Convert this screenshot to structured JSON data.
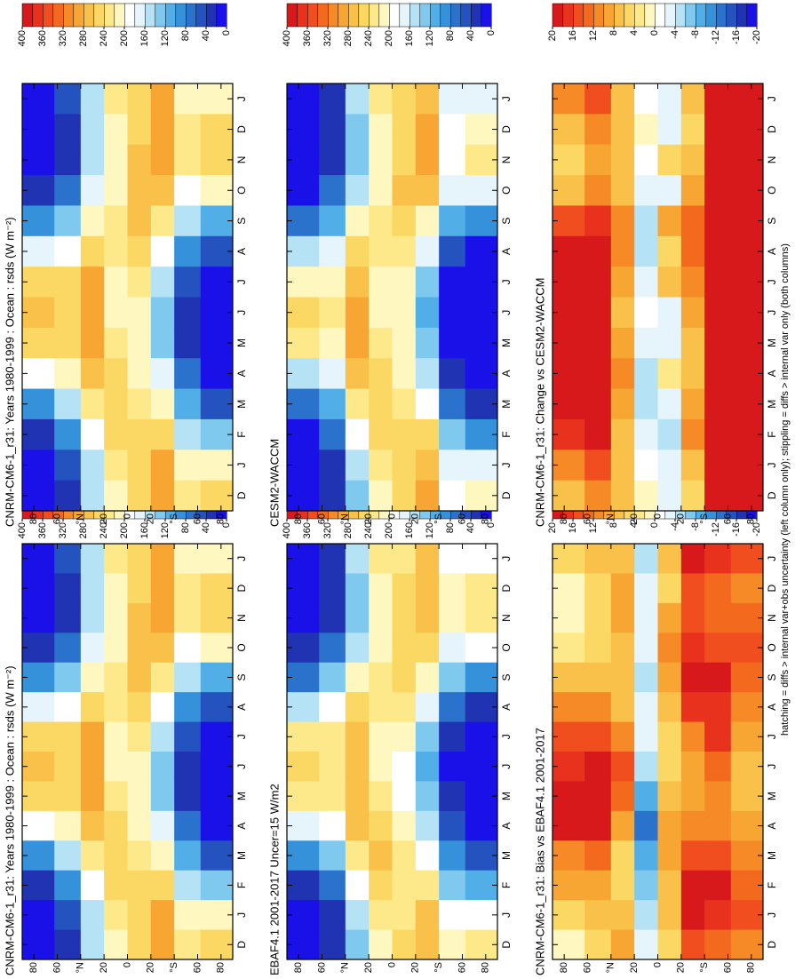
{
  "chart_data": [
    {
      "type": "heatmap",
      "title": "CNRM-CM6-1_r31: Years 1980-1999 : Ocean : rsds (W m⁻²)",
      "x": [
        "D",
        "J",
        "F",
        "M",
        "A",
        "M",
        "J",
        "J",
        "A",
        "S",
        "O",
        "N",
        "D",
        "J"
      ],
      "y": [
        75,
        50,
        30,
        10,
        -10,
        -30,
        -50,
        -75
      ],
      "z": [
        [
          0,
          5,
          30,
          90,
          180,
          250,
          270,
          240,
          160,
          80,
          25,
          3,
          0,
          5
        ],
        [
          30,
          40,
          80,
          140,
          200,
          240,
          250,
          240,
          190,
          130,
          70,
          35,
          30,
          40
        ],
        [
          140,
          150,
          190,
          230,
          270,
          290,
          290,
          280,
          250,
          210,
          160,
          140,
          140,
          150
        ],
        [
          210,
          220,
          240,
          250,
          240,
          220,
          210,
          210,
          220,
          220,
          210,
          200,
          210,
          220
        ],
        [
          250,
          240,
          240,
          230,
          210,
          200,
          200,
          220,
          240,
          260,
          260,
          260,
          250,
          240
        ],
        [
          290,
          280,
          250,
          200,
          160,
          130,
          120,
          140,
          180,
          230,
          270,
          290,
          290,
          280
        ],
        [
          220,
          200,
          150,
          100,
          60,
          30,
          25,
          40,
          80,
          140,
          190,
          220,
          220,
          200
        ],
        [
          240,
          200,
          120,
          50,
          10,
          0,
          0,
          5,
          40,
          110,
          200,
          250,
          240,
          200
        ]
      ],
      "ylim": [
        -90,
        90
      ],
      "yticks": [
        {
          "value": 80,
          "label": "80"
        },
        {
          "value": 60,
          "label": "60"
        },
        {
          "value": 40,
          "label": "°N"
        },
        {
          "value": 20,
          "label": "20"
        },
        0,
        {
          "value": -20,
          "label": "20"
        },
        {
          "value": -40,
          "label": "°S"
        },
        {
          "value": -60,
          "label": "60"
        },
        {
          "value": -80,
          "label": "80"
        }
      ],
      "zlim": [
        0,
        400
      ],
      "cbticks": [
        400,
        360,
        320,
        280,
        240,
        200,
        160,
        120,
        80,
        40,
        0
      ]
    },
    {
      "type": "heatmap",
      "title": "CNRM-CM6-1_r31: Years 1980-1999 : Ocean : rsds (W m⁻²)",
      "x": [
        "D",
        "J",
        "F",
        "M",
        "A",
        "M",
        "J",
        "J",
        "A",
        "S",
        "O",
        "N",
        "D",
        "J"
      ],
      "y": [
        75,
        50,
        30,
        10,
        -10,
        -30,
        -50,
        -75
      ],
      "z": [
        [
          0,
          5,
          30,
          90,
          180,
          250,
          270,
          240,
          160,
          80,
          25,
          3,
          0,
          5
        ],
        [
          30,
          40,
          80,
          140,
          200,
          240,
          250,
          240,
          190,
          130,
          70,
          35,
          30,
          40
        ],
        [
          140,
          150,
          190,
          230,
          270,
          290,
          290,
          280,
          250,
          210,
          160,
          140,
          140,
          150
        ],
        [
          210,
          220,
          240,
          250,
          240,
          220,
          210,
          210,
          220,
          220,
          210,
          200,
          210,
          220
        ],
        [
          250,
          240,
          240,
          230,
          210,
          200,
          200,
          220,
          240,
          260,
          260,
          260,
          250,
          240
        ],
        [
          290,
          280,
          250,
          200,
          160,
          130,
          120,
          140,
          180,
          230,
          270,
          290,
          290,
          280
        ],
        [
          220,
          200,
          150,
          100,
          60,
          30,
          25,
          40,
          80,
          140,
          190,
          220,
          220,
          200
        ],
        [
          240,
          200,
          120,
          50,
          10,
          0,
          0,
          5,
          40,
          110,
          200,
          250,
          240,
          200
        ]
      ],
      "ylim": [
        -90,
        90
      ],
      "yticks": [
        {
          "value": 80,
          "label": "80"
        },
        {
          "value": 60,
          "label": "60"
        },
        {
          "value": 40,
          "label": "°N"
        },
        {
          "value": 20,
          "label": "20"
        },
        0,
        {
          "value": -20,
          "label": "20"
        },
        {
          "value": -40,
          "label": "°S"
        },
        {
          "value": -60,
          "label": "60"
        },
        {
          "value": -80,
          "label": "80"
        }
      ],
      "zlim": [
        0,
        400
      ],
      "cbticks": [
        400,
        360,
        320,
        280,
        240,
        200,
        160,
        120,
        80,
        40,
        0
      ]
    },
    {
      "type": "heatmap",
      "title": "EBAF4.1 2001-2017 Uncer=15 W/m2",
      "x": [
        "D",
        "J",
        "F",
        "M",
        "A",
        "M",
        "J",
        "J",
        "A",
        "S",
        "O",
        "N",
        "D",
        "J"
      ],
      "y": [
        75,
        50,
        30,
        10,
        -10,
        -30,
        -50,
        -75
      ],
      "z": [
        [
          0,
          3,
          25,
          85,
          165,
          230,
          255,
          228,
          150,
          76,
          23,
          3,
          0,
          3
        ],
        [
          26,
          34,
          72,
          128,
          180,
          220,
          232,
          226,
          180,
          124,
          66,
          31,
          26,
          34
        ],
        [
          132,
          144,
          186,
          226,
          262,
          278,
          276,
          270,
          244,
          204,
          154,
          132,
          132,
          144
        ],
        [
          214,
          226,
          248,
          260,
          254,
          230,
          216,
          214,
          224,
          226,
          214,
          204,
          214,
          226
        ],
        [
          246,
          234,
          234,
          222,
          202,
          194,
          196,
          216,
          234,
          252,
          250,
          252,
          246,
          234
        ],
        [
          276,
          262,
          230,
          186,
          150,
          122,
          112,
          130,
          164,
          212,
          254,
          276,
          276,
          262
        ],
        [
          208,
          184,
          132,
          86,
          50,
          20,
          13,
          24,
          64,
          122,
          176,
          208,
          208,
          184
        ],
        [
          230,
          186,
          108,
          40,
          2,
          0,
          0,
          0,
          30,
          98,
          186,
          238,
          230,
          186
        ]
      ],
      "ylim": [
        -90,
        90
      ],
      "yticks": [
        {
          "value": 80,
          "label": "80"
        },
        {
          "value": 60,
          "label": "60"
        },
        {
          "value": 40,
          "label": "°N"
        },
        {
          "value": 20,
          "label": "20"
        },
        0,
        {
          "value": -20,
          "label": "20"
        },
        {
          "value": -40,
          "label": "°S"
        },
        {
          "value": -60,
          "label": "60"
        },
        {
          "value": -80,
          "label": "80"
        }
      ],
      "zlim": [
        0,
        400
      ],
      "cbticks": [
        400,
        360,
        320,
        280,
        240,
        200,
        160,
        120,
        80,
        40,
        0
      ]
    },
    {
      "type": "heatmap",
      "title": "CESM2-WACCM",
      "x": [
        "D",
        "J",
        "F",
        "M",
        "A",
        "M",
        "J",
        "J",
        "A",
        "S",
        "O",
        "N",
        "D",
        "J"
      ],
      "y": [
        75,
        50,
        30,
        10,
        -10,
        -30,
        -50,
        -75
      ],
      "z": [
        [
          0,
          0,
          14,
          70,
          156,
          226,
          246,
          216,
          140,
          66,
          19,
          0,
          0,
          0
        ],
        [
          20,
          26,
          60,
          118,
          176,
          218,
          228,
          218,
          170,
          114,
          60,
          27,
          20,
          26
        ],
        [
          134,
          144,
          184,
          222,
          260,
          282,
          284,
          272,
          240,
          200,
          154,
          134,
          134,
          144
        ],
        [
          210,
          222,
          244,
          256,
          246,
          224,
          212,
          214,
          226,
          226,
          214,
          202,
          210,
          222
        ],
        [
          254,
          244,
          246,
          234,
          208,
          204,
          204,
          214,
          236,
          252,
          264,
          256,
          254,
          244
        ],
        [
          286,
          274,
          240,
          192,
          154,
          124,
          112,
          130,
          168,
          218,
          262,
          284,
          286,
          274
        ],
        [
          196,
          176,
          126,
          76,
          36,
          6,
          1,
          16,
          56,
          116,
          166,
          196,
          196,
          176
        ],
        [
          216,
          176,
          96,
          26,
          0,
          0,
          0,
          0,
          16,
          86,
          176,
          226,
          216,
          176
        ]
      ],
      "ylim": [
        -90,
        90
      ],
      "yticks": [
        {
          "value": 80,
          "label": "80"
        },
        {
          "value": 60,
          "label": "60"
        },
        {
          "value": 40,
          "label": "°N"
        },
        {
          "value": 20,
          "label": "20"
        },
        0,
        {
          "value": -20,
          "label": "20"
        },
        {
          "value": -40,
          "label": "°S"
        },
        {
          "value": -60,
          "label": "60"
        },
        {
          "value": -80,
          "label": "80"
        }
      ],
      "zlim": [
        0,
        400
      ],
      "cbticks": [
        400,
        360,
        320,
        280,
        240,
        200,
        160,
        120,
        80,
        40,
        0
      ]
    },
    {
      "type": "heatmap",
      "title": "CNRM-CM6-1_r31: Bias vs EBAF4.1 2001-2017",
      "x": [
        "D",
        "J",
        "F",
        "M",
        "A",
        "M",
        "J",
        "J",
        "A",
        "S",
        "O",
        "N",
        "D",
        "J"
      ],
      "y": [
        75,
        50,
        30,
        10,
        -10,
        -30,
        -50,
        -75
      ],
      "z": [
        [
          0,
          5,
          8,
          10,
          18,
          20,
          16,
          14,
          10,
          6,
          2,
          0,
          0,
          5
        ],
        [
          4,
          6,
          8,
          12,
          20,
          20,
          18,
          14,
          10,
          6,
          4,
          4,
          4,
          6
        ],
        [
          8,
          6,
          4,
          4,
          8,
          12,
          14,
          10,
          6,
          6,
          6,
          8,
          8,
          6
        ],
        [
          -4,
          -6,
          -8,
          -10,
          -14,
          -10,
          -6,
          -4,
          -4,
          -6,
          -4,
          -4,
          -4,
          -6
        ],
        [
          4,
          6,
          6,
          8,
          8,
          6,
          4,
          4,
          6,
          8,
          10,
          8,
          4,
          6
        ],
        [
          14,
          18,
          20,
          14,
          10,
          8,
          8,
          10,
          16,
          18,
          16,
          14,
          14,
          18
        ],
        [
          12,
          16,
          18,
          14,
          10,
          10,
          12,
          16,
          16,
          18,
          14,
          12,
          12,
          16
        ],
        [
          10,
          14,
          12,
          10,
          8,
          6,
          6,
          8,
          10,
          12,
          14,
          12,
          10,
          14
        ]
      ],
      "ylim": [
        -90,
        90
      ],
      "yticks": [
        {
          "value": 80,
          "label": "80"
        },
        {
          "value": 60,
          "label": "60"
        },
        {
          "value": 40,
          "label": "°N"
        },
        {
          "value": 20,
          "label": "20"
        },
        0,
        {
          "value": -20,
          "label": "20"
        },
        {
          "value": -40,
          "label": "°S"
        },
        {
          "value": -60,
          "label": "60"
        },
        {
          "value": -80,
          "label": "80"
        }
      ],
      "zlim": [
        -20,
        20
      ],
      "cbticks": [
        20,
        16,
        12,
        8,
        4,
        0,
        -4,
        -8,
        -12,
        -16,
        -20
      ]
    },
    {
      "type": "heatmap",
      "title": "CNRM-CM6-1_r31: Change vs CESM2-WACCM",
      "x": [
        "D",
        "J",
        "F",
        "M",
        "A",
        "M",
        "J",
        "J",
        "A",
        "S",
        "O",
        "N",
        "D",
        "J"
      ],
      "y": [
        75,
        50,
        30,
        10,
        -10,
        -30,
        -50,
        -75
      ],
      "z": [
        [
          6,
          10,
          16,
          20,
          24,
          24,
          24,
          24,
          20,
          14,
          6,
          4,
          6,
          10
        ],
        [
          10,
          14,
          20,
          22,
          24,
          22,
          22,
          22,
          20,
          16,
          10,
          8,
          10,
          14
        ],
        [
          6,
          6,
          6,
          8,
          10,
          8,
          6,
          8,
          10,
          10,
          6,
          6,
          6,
          6
        ],
        [
          0,
          -2,
          -4,
          -6,
          -6,
          -4,
          -2,
          -4,
          -6,
          -6,
          -4,
          -2,
          0,
          -2
        ],
        [
          -4,
          -4,
          -6,
          -4,
          2,
          -4,
          -4,
          6,
          4,
          8,
          -4,
          4,
          -4,
          -4
        ],
        [
          4,
          6,
          10,
          8,
          6,
          6,
          8,
          10,
          12,
          12,
          8,
          6,
          4,
          6
        ],
        [
          24,
          24,
          24,
          24,
          24,
          24,
          24,
          24,
          24,
          24,
          24,
          24,
          24,
          24
        ],
        [
          24,
          24,
          24,
          24,
          24,
          24,
          24,
          24,
          24,
          24,
          24,
          24,
          24,
          24
        ]
      ],
      "ylim": [
        -90,
        90
      ],
      "yticks": [
        {
          "value": 80,
          "label": "80"
        },
        {
          "value": 60,
          "label": "60"
        },
        {
          "value": 40,
          "label": "°N"
        },
        {
          "value": 20,
          "label": "20"
        },
        0,
        {
          "value": -20,
          "label": "20"
        },
        {
          "value": -40,
          "label": "°S"
        },
        {
          "value": -60,
          "label": "60"
        },
        {
          "value": -80,
          "label": "80"
        }
      ],
      "zlim": [
        -20,
        20
      ],
      "cbticks": [
        20,
        16,
        12,
        8,
        4,
        0,
        -4,
        -8,
        -12,
        -16,
        -20
      ]
    }
  ],
  "colormap": [
    "#1a10e8",
    "#1f33b3",
    "#2453c0",
    "#2a72cc",
    "#3591da",
    "#52aee6",
    "#80c9ee",
    "#b5e2f5",
    "#e6f5fb",
    "#ffffff",
    "#fff7c0",
    "#fde98a",
    "#fbd863",
    "#f9c14a",
    "#f7a634",
    "#f58a26",
    "#f36a1e",
    "#f04e1e",
    "#e8321e",
    "#d7191c"
  ],
  "footnote": "hatching = diffs > internal var+obs uncertainty (left column only); stippling = diffs > internal var only (both columns)"
}
